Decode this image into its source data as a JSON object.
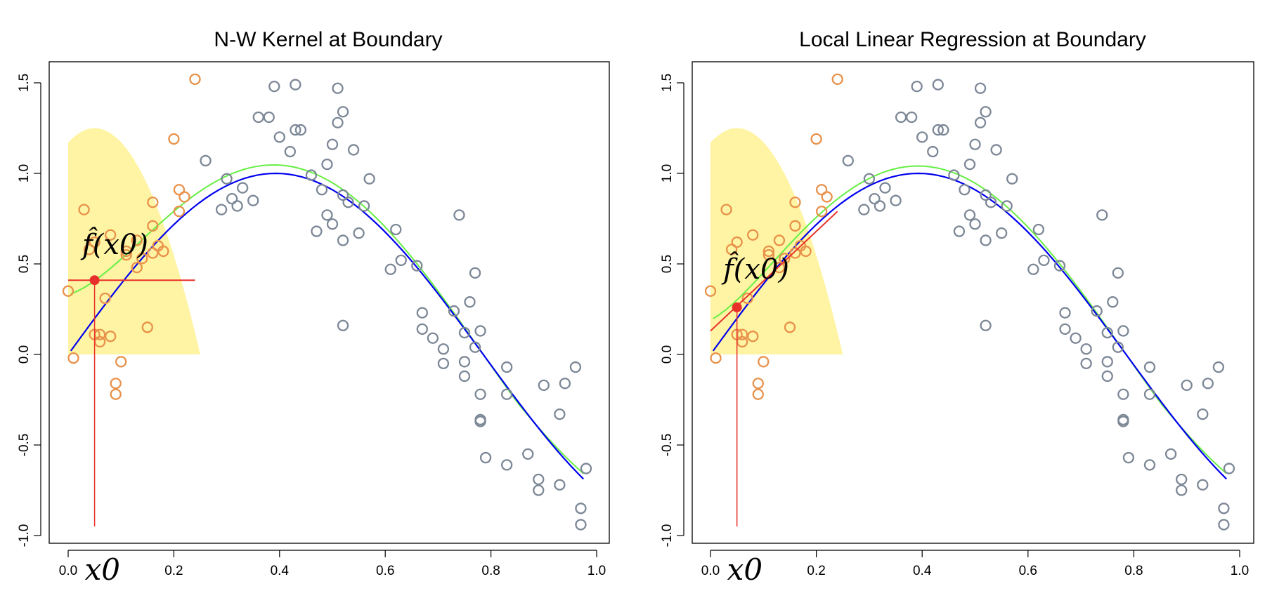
{
  "chart_data": [
    {
      "type": "scatter",
      "title": "N-W Kernel at Boundary",
      "xlabel": "",
      "ylabel": "",
      "xlim": [
        -0.01,
        1.0
      ],
      "ylim": [
        -1.05,
        1.6
      ],
      "x_ticks": [
        "0.0",
        "0.2",
        "0.4",
        "0.6",
        "0.8",
        "1.0"
      ],
      "y_ticks": [
        "-1.0",
        "-0.5",
        "0.0",
        "0.5",
        "1.0",
        "1.5"
      ],
      "x0_label": "x0",
      "fhat_label": "f̂(x0)",
      "x0": 0.05,
      "fhat_value": 0.41,
      "estimate_line": {
        "x_from": 0.0,
        "x_to": 0.24,
        "y_from": 0.41,
        "y_to": 0.41
      },
      "kernel_region": {
        "x_from": 0.0,
        "x_to": 0.25,
        "y_peak": 1.25,
        "y_start": 1.17,
        "peak_x": 0.05
      },
      "colors": {
        "in_window": "#e8914a",
        "out_window": "#7c8796",
        "true_curve": "#0000ee",
        "fit_curve": "#66ee44",
        "estimate": "#e8302a",
        "kernel": "#fff4a3"
      }
    },
    {
      "type": "scatter",
      "title": "Local Linear Regression at Boundary",
      "xlabel": "",
      "ylabel": "",
      "xlim": [
        -0.01,
        1.0
      ],
      "ylim": [
        -1.05,
        1.6
      ],
      "x_ticks": [
        "0.0",
        "0.2",
        "0.4",
        "0.6",
        "0.8",
        "1.0"
      ],
      "y_ticks": [
        "-1.0",
        "-0.5",
        "0.0",
        "0.5",
        "1.0",
        "1.5"
      ],
      "x0_label": "x0",
      "fhat_label": "f̂(x0)",
      "x0": 0.05,
      "fhat_value": 0.26,
      "estimate_line": {
        "x_from": 0.0,
        "x_to": 0.24,
        "y_from": 0.13,
        "y_to": 0.79
      },
      "kernel_region": {
        "x_from": 0.0,
        "x_to": 0.25,
        "y_peak": 1.25,
        "y_start": 1.17,
        "peak_x": 0.05
      },
      "colors": {
        "in_window": "#e8914a",
        "out_window": "#7c8796",
        "true_curve": "#0000ee",
        "fit_curve": "#66ee44",
        "estimate": "#e8302a",
        "kernel": "#fff4a3"
      }
    }
  ],
  "points": [
    [
      0.0,
      0.35
    ],
    [
      0.01,
      -0.02
    ],
    [
      0.03,
      0.8
    ],
    [
      0.04,
      0.58
    ],
    [
      0.05,
      0.11
    ],
    [
      0.05,
      0.62
    ],
    [
      0.06,
      0.11
    ],
    [
      0.06,
      0.07
    ],
    [
      0.07,
      0.31
    ],
    [
      0.08,
      0.1
    ],
    [
      0.08,
      0.66
    ],
    [
      0.09,
      -0.22
    ],
    [
      0.09,
      -0.16
    ],
    [
      0.1,
      -0.04
    ],
    [
      0.11,
      0.55
    ],
    [
      0.11,
      0.57
    ],
    [
      0.13,
      0.48
    ],
    [
      0.13,
      0.63
    ],
    [
      0.14,
      0.53
    ],
    [
      0.15,
      0.15
    ],
    [
      0.16,
      0.84
    ],
    [
      0.16,
      0.71
    ],
    [
      0.16,
      0.56
    ],
    [
      0.17,
      0.6
    ],
    [
      0.18,
      0.57
    ],
    [
      0.2,
      1.19
    ],
    [
      0.21,
      0.91
    ],
    [
      0.21,
      0.79
    ],
    [
      0.22,
      0.87
    ],
    [
      0.24,
      1.52
    ],
    [
      0.26,
      1.07
    ],
    [
      0.29,
      0.8
    ],
    [
      0.3,
      0.97
    ],
    [
      0.31,
      0.86
    ],
    [
      0.32,
      0.82
    ],
    [
      0.33,
      0.92
    ],
    [
      0.35,
      0.85
    ],
    [
      0.36,
      1.31
    ],
    [
      0.38,
      1.31
    ],
    [
      0.39,
      1.48
    ],
    [
      0.4,
      1.2
    ],
    [
      0.42,
      1.12
    ],
    [
      0.43,
      1.49
    ],
    [
      0.43,
      1.24
    ],
    [
      0.44,
      1.24
    ],
    [
      0.46,
      0.99
    ],
    [
      0.47,
      0.68
    ],
    [
      0.48,
      0.91
    ],
    [
      0.49,
      1.05
    ],
    [
      0.49,
      0.77
    ],
    [
      0.5,
      0.72
    ],
    [
      0.5,
      1.16
    ],
    [
      0.51,
      1.28
    ],
    [
      0.51,
      1.47
    ],
    [
      0.52,
      1.34
    ],
    [
      0.52,
      0.88
    ],
    [
      0.52,
      0.63
    ],
    [
      0.52,
      0.16
    ],
    [
      0.53,
      0.84
    ],
    [
      0.54,
      1.13
    ],
    [
      0.55,
      0.67
    ],
    [
      0.56,
      0.82
    ],
    [
      0.57,
      0.97
    ],
    [
      0.61,
      0.47
    ],
    [
      0.62,
      0.69
    ],
    [
      0.63,
      0.52
    ],
    [
      0.66,
      0.49
    ],
    [
      0.67,
      0.23
    ],
    [
      0.67,
      0.14
    ],
    [
      0.69,
      0.09
    ],
    [
      0.71,
      0.03
    ],
    [
      0.71,
      -0.05
    ],
    [
      0.73,
      0.24
    ],
    [
      0.74,
      0.77
    ],
    [
      0.75,
      0.12
    ],
    [
      0.75,
      -0.04
    ],
    [
      0.75,
      -0.12
    ],
    [
      0.76,
      0.29
    ],
    [
      0.77,
      0.45
    ],
    [
      0.77,
      0.04
    ],
    [
      0.78,
      -0.22
    ],
    [
      0.78,
      -0.36
    ],
    [
      0.78,
      0.13
    ],
    [
      0.78,
      -0.37
    ],
    [
      0.79,
      -0.57
    ],
    [
      0.83,
      -0.07
    ],
    [
      0.83,
      -0.22
    ],
    [
      0.83,
      -0.61
    ],
    [
      0.87,
      -0.55
    ],
    [
      0.89,
      -0.69
    ],
    [
      0.89,
      -0.75
    ],
    [
      0.9,
      -0.17
    ],
    [
      0.93,
      -0.33
    ],
    [
      0.93,
      -0.72
    ],
    [
      0.94,
      -0.16
    ],
    [
      0.96,
      -0.07
    ],
    [
      0.97,
      -0.85
    ],
    [
      0.97,
      -0.94
    ],
    [
      0.98,
      -0.63
    ]
  ]
}
